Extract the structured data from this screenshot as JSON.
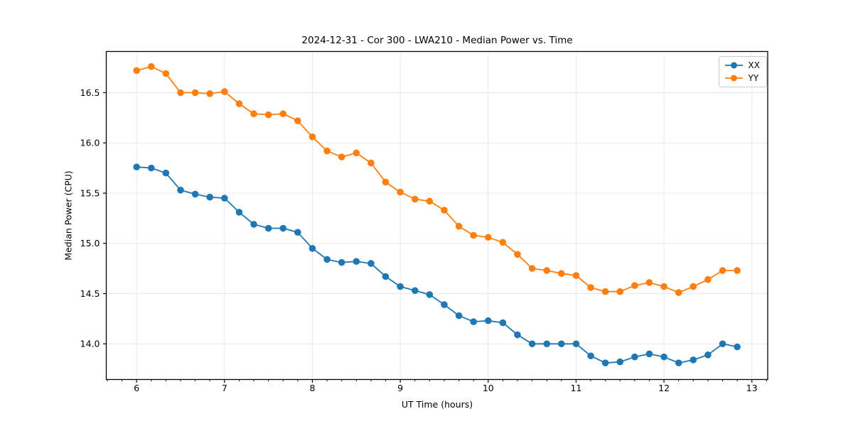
{
  "chart_data": {
    "type": "line",
    "title": "2024-12-31 - Cor 300 - LWA210 - Median Power vs. Time",
    "xlabel": "UT Time (hours)",
    "ylabel": "Median Power (CPU)",
    "xlim": [
      5.655,
      13.18
    ],
    "ylim": [
      13.645,
      16.91
    ],
    "xticks": [
      6,
      7,
      8,
      9,
      10,
      11,
      12,
      13
    ],
    "yticks": [
      14.0,
      14.5,
      15.0,
      15.5,
      16.0,
      16.5
    ],
    "x_minor_step_hours": 0.1667,
    "grid": true,
    "legend_position": "upper right",
    "x": [
      6.0,
      6.167,
      6.333,
      6.5,
      6.667,
      6.833,
      7.0,
      7.167,
      7.333,
      7.5,
      7.667,
      7.833,
      8.0,
      8.167,
      8.333,
      8.5,
      8.667,
      8.833,
      9.0,
      9.167,
      9.333,
      9.5,
      9.667,
      9.833,
      10.0,
      10.167,
      10.333,
      10.5,
      10.667,
      10.833,
      11.0,
      11.167,
      11.333,
      11.5,
      11.667,
      11.833,
      12.0,
      12.167,
      12.333,
      12.5,
      12.667,
      12.833
    ],
    "series": [
      {
        "name": "XX",
        "color": "#1f77b4",
        "values": [
          15.76,
          15.75,
          15.7,
          15.53,
          15.49,
          15.46,
          15.45,
          15.31,
          15.19,
          15.15,
          15.15,
          15.11,
          14.95,
          14.84,
          14.81,
          14.82,
          14.8,
          14.67,
          14.57,
          14.53,
          14.49,
          14.39,
          14.28,
          14.22,
          14.23,
          14.21,
          14.09,
          14.0,
          14.0,
          14.0,
          14.0,
          13.88,
          13.81,
          13.82,
          13.87,
          13.9,
          13.87,
          13.81,
          13.84,
          13.89,
          14.0,
          13.97
        ]
      },
      {
        "name": "YY",
        "color": "#ff7f0e",
        "values": [
          16.72,
          16.76,
          16.69,
          16.5,
          16.5,
          16.49,
          16.51,
          16.39,
          16.29,
          16.28,
          16.29,
          16.22,
          16.06,
          15.92,
          15.86,
          15.9,
          15.8,
          15.61,
          15.51,
          15.44,
          15.42,
          15.33,
          15.17,
          15.08,
          15.06,
          15.01,
          14.89,
          14.75,
          14.73,
          14.7,
          14.68,
          14.56,
          14.52,
          14.52,
          14.58,
          14.61,
          14.57,
          14.51,
          14.57,
          14.64,
          14.73,
          14.73
        ]
      }
    ],
    "style": {
      "grid_color": "#e8e8e8",
      "spine_color": "#000000",
      "tick_label_color": "#000000",
      "marker_radius": 4.8,
      "line_width": 1.8
    }
  }
}
